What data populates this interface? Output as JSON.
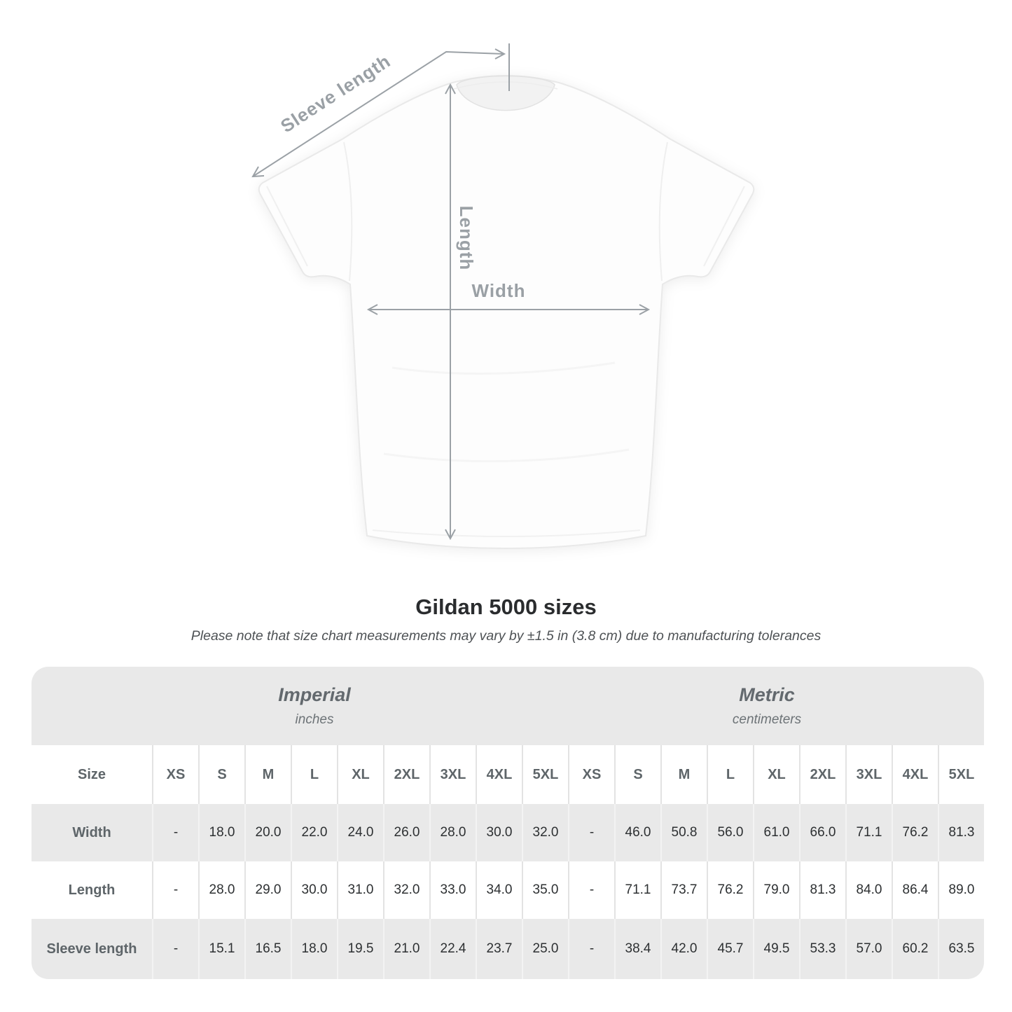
{
  "diagram": {
    "sleeve_length_label": "Sleeve length",
    "length_label": "Length",
    "width_label": "Width",
    "arrow_color": "#9ba1a6"
  },
  "chart_data": {
    "type": "table",
    "title": "Gildan 5000 sizes",
    "subtitle": "Please note that size chart measurements may vary by ±1.5 in (3.8 cm) due to manufacturing tolerances",
    "size_header": "Size",
    "groups": [
      {
        "name": "Imperial",
        "unit": "inches"
      },
      {
        "name": "Metric",
        "unit": "centimeters"
      }
    ],
    "sizes": [
      "XS",
      "S",
      "M",
      "L",
      "XL",
      "2XL",
      "3XL",
      "4XL",
      "5XL"
    ],
    "rows": [
      {
        "label": "Width",
        "imperial": [
          "-",
          "18.0",
          "20.0",
          "22.0",
          "24.0",
          "26.0",
          "28.0",
          "30.0",
          "32.0"
        ],
        "metric": [
          "-",
          "46.0",
          "50.8",
          "56.0",
          "61.0",
          "66.0",
          "71.1",
          "76.2",
          "81.3"
        ]
      },
      {
        "label": "Length",
        "imperial": [
          "-",
          "28.0",
          "29.0",
          "30.0",
          "31.0",
          "32.0",
          "33.0",
          "34.0",
          "35.0"
        ],
        "metric": [
          "-",
          "71.1",
          "73.7",
          "76.2",
          "79.0",
          "81.3",
          "84.0",
          "86.4",
          "89.0"
        ]
      },
      {
        "label": "Sleeve length",
        "imperial": [
          "-",
          "15.1",
          "16.5",
          "18.0",
          "19.5",
          "21.0",
          "22.4",
          "23.7",
          "25.0"
        ],
        "metric": [
          "-",
          "38.4",
          "42.0",
          "45.7",
          "49.5",
          "53.3",
          "57.0",
          "60.2",
          "63.5"
        ]
      }
    ],
    "row_stripe_colors": {
      "gray": "#e9e9e9",
      "white": "#ffffff"
    }
  }
}
